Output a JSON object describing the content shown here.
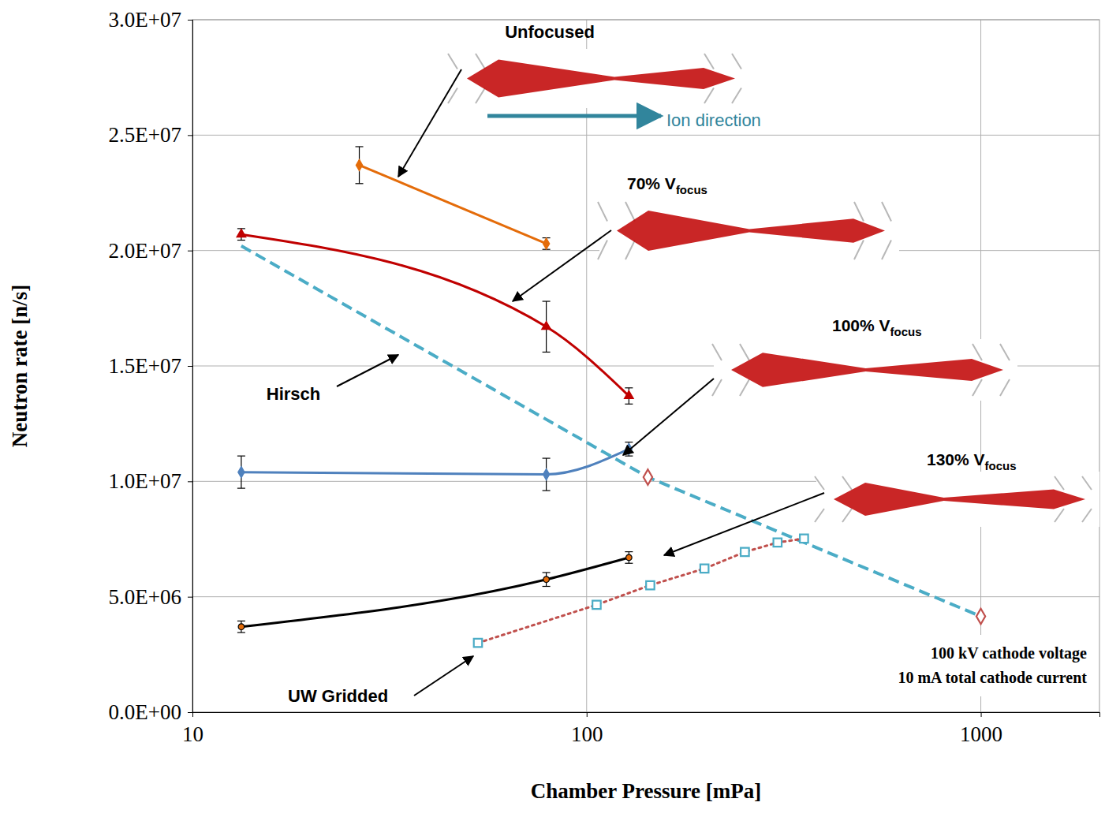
{
  "chart_data": {
    "type": "line",
    "x_label": "Chamber Pressure [mPa]",
    "y_label": "Neutron rate [n/s]",
    "log": "x",
    "grid": true,
    "xlim": [
      10,
      2000
    ],
    "xticks": [
      10,
      100,
      1000
    ],
    "ylim": [
      0,
      30000000
    ],
    "yticks": [
      {
        "value": 0,
        "label": "0.0E+00"
      },
      {
        "value": 5000000,
        "label": "5.0E+06"
      },
      {
        "value": 10000000,
        "label": "1.0E+07"
      },
      {
        "value": 15000000,
        "label": "1.5E+07"
      },
      {
        "value": 20000000,
        "label": "2.0E+07"
      },
      {
        "value": 25000000,
        "label": "2.5E+07"
      },
      {
        "value": 30000000,
        "label": "3.0E+07"
      }
    ],
    "series": [
      {
        "x": [
          26.5,
          79
        ],
        "values": [
          23700000,
          20300000
        ],
        "errors": [
          800000,
          250000
        ],
        "color": "#E46C0A",
        "marker": "diamond",
        "line_style": "solid"
      },
      {
        "x": [
          13.3,
          79,
          128
        ],
        "values": [
          20700000,
          16700000,
          13700000
        ],
        "errors": [
          250000,
          1100000,
          350000
        ],
        "color": "#C00000",
        "marker": "triangle",
        "line_style": "solid"
      },
      {
        "x": [
          13.3,
          79,
          128
        ],
        "values": [
          10400000,
          10300000,
          11400000
        ],
        "errors": [
          700000,
          700000,
          300000
        ],
        "color": "#4F81BD",
        "marker": "diamond",
        "line_style": "solid"
      },
      {
        "x": [
          13.3,
          79,
          128
        ],
        "values": [
          3700000,
          5750000,
          6700000
        ],
        "errors": [
          250000,
          300000,
          250000
        ],
        "color": "#000000",
        "marker": "circle",
        "line_style": "solid"
      },
      {
        "x": [
          13.3,
          143,
          1000
        ],
        "values": [
          20200000,
          10180000,
          4150000
        ],
        "color": "#4BACC6",
        "marker": "diamond-open",
        "line_style": "dashed",
        "colors": [
          null,
          "#C0504D",
          "#C0504D"
        ]
      },
      {
        "x": [
          53,
          106,
          145,
          199,
          252,
          305,
          356
        ],
        "values": [
          3000000,
          4650000,
          5500000,
          6220000,
          6940000,
          7350000,
          7520000
        ],
        "color": "#C0504D",
        "marker": "square-open",
        "line_style": "dotted",
        "colors": [
          "#4BACC6",
          "#4BACC6",
          "#4BACC6",
          "#4BACC6",
          "#4BACC6",
          "#4BACC6",
          "#4BACC6"
        ]
      }
    ],
    "annotations": [
      {
        "text": "Unfocused"
      },
      {
        "text": "Ion direction"
      },
      {
        "text": "70% V",
        "subscript": "focus"
      },
      {
        "text": "Hirsch"
      },
      {
        "text": "100% V",
        "subscript": "focus"
      },
      {
        "text": "130% V",
        "subscript": "focus"
      },
      {
        "text": "UW Gridded"
      },
      {
        "text": "100 kV cathode voltage"
      },
      {
        "text": "10 mA total cathode current"
      }
    ]
  }
}
